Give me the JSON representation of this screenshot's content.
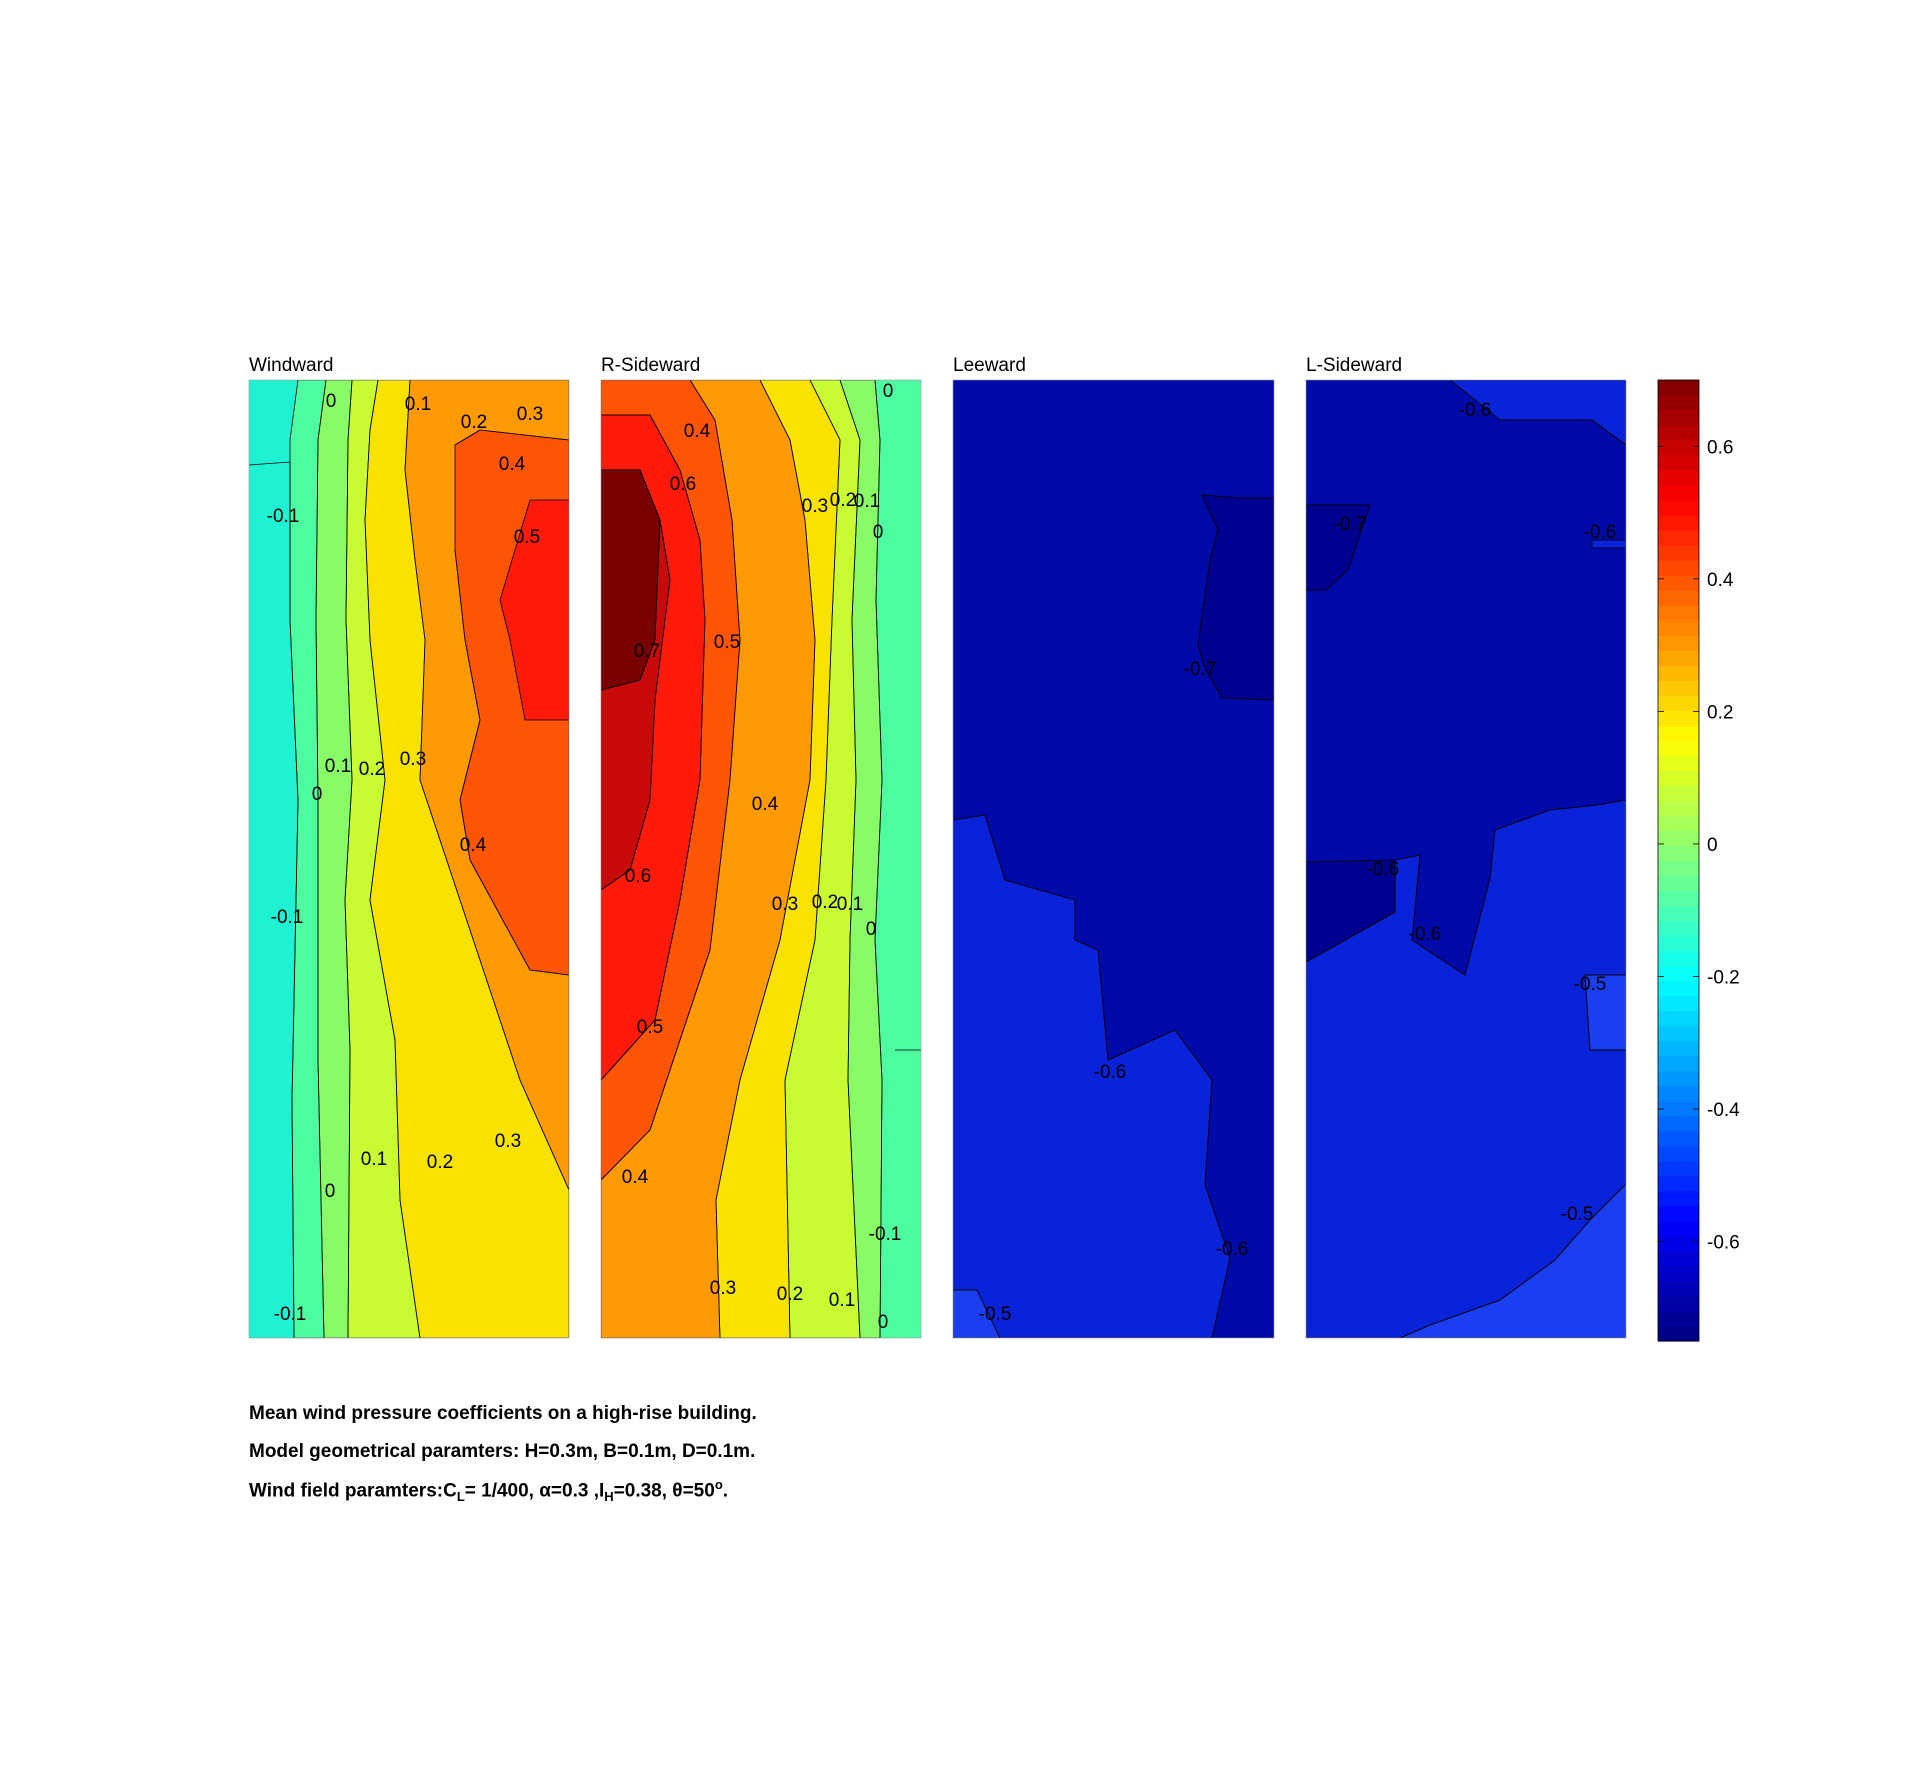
{
  "chart_data": {
    "type": "filled-contour",
    "colormap": "jet",
    "panels": [
      {
        "title": "Windward",
        "contour_labels": [
          "0",
          "0.1",
          "0.2",
          "0.3",
          "0.4",
          "0.5",
          "-0.1",
          "0.1",
          "0.2",
          "0.3",
          "0",
          "0.4",
          "-0.1",
          "0.1",
          "0.2",
          "0.3",
          "0",
          "-0.1"
        ],
        "label_values": [
          0,
          0.1,
          0.2,
          0.3,
          0.4,
          0.5,
          -0.1,
          0.1,
          0.2,
          0.3,
          0,
          0.4,
          -0.1,
          0.1,
          0.2,
          0.3,
          0,
          -0.1
        ]
      },
      {
        "title": "R-Sideward",
        "contour_labels": [
          "0.4",
          "0.6",
          "0.3",
          "0.2",
          "0.1",
          "0",
          "0",
          "0.7",
          "0.5",
          "0.4",
          "0.6",
          "0.3",
          "0.2",
          "0.1",
          "0",
          "0.5",
          "0.4",
          "-0.1",
          "0.3",
          "0.2",
          "0.1",
          "0"
        ],
        "label_values": [
          0.4,
          0.6,
          0.3,
          0.2,
          0.1,
          0,
          0,
          0.7,
          0.5,
          0.4,
          0.6,
          0.3,
          0.2,
          0.1,
          0,
          0.5,
          0.4,
          -0.1,
          0.3,
          0.2,
          0.1,
          0
        ]
      },
      {
        "title": "Leeward",
        "contour_labels": [
          "-0.7",
          "-0.6",
          "-0.6",
          "-0.5"
        ],
        "label_values": [
          -0.7,
          -0.6,
          -0.6,
          -0.5
        ]
      },
      {
        "title": "L-Sideward",
        "contour_labels": [
          "-0.6",
          "-0.7",
          "-0.6",
          "-0.6",
          "-0.6",
          "-0.5",
          "-0.5"
        ],
        "label_values": [
          -0.6,
          -0.7,
          -0.6,
          -0.6,
          -0.6,
          -0.5,
          -0.5
        ]
      }
    ],
    "colorbar": {
      "range": [
        -0.75,
        0.7
      ],
      "ticks": [
        0.6,
        0.4,
        0.2,
        0,
        -0.2,
        -0.4,
        -0.6
      ],
      "tick_labels": [
        "0.6",
        "0.4",
        "0.2",
        "0",
        "-0.2",
        "-0.4",
        "-0.6"
      ]
    }
  },
  "caption": {
    "line1": "Mean wind pressure coefficients on a high-rise building.",
    "line2": "Model geometrical paramters: H=0.3m, B=0.1m, D=0.1m.",
    "line3_a": "Wind field paramters:C",
    "line3_sub1": "L",
    "line3_b": "= 1/400, α=0.3 ,I",
    "line3_sub2": "H",
    "line3_c": "=0.38, θ=50",
    "line3_sup": "o",
    "line3_d": "."
  }
}
